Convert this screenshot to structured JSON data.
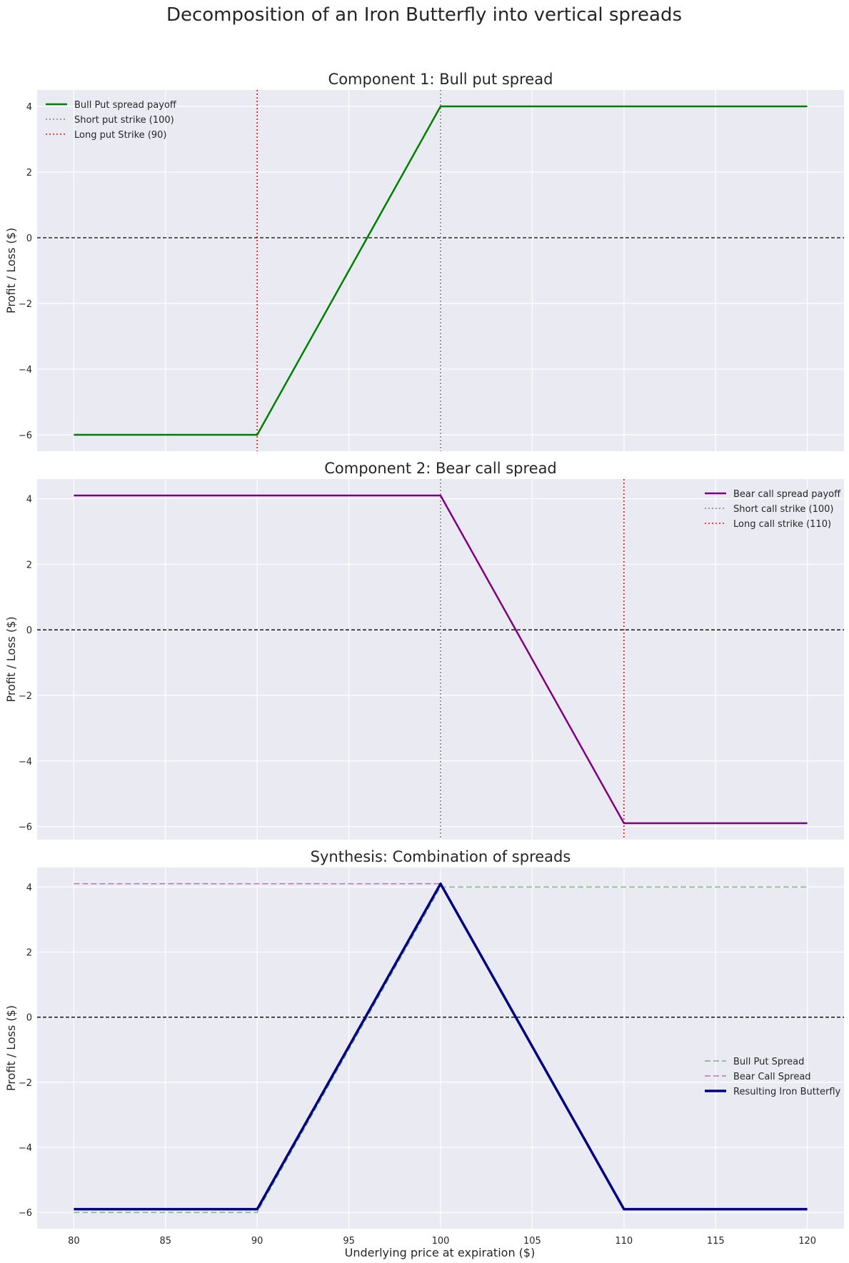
{
  "chart_data": {
    "title": "Decomposition of an Iron Butterfly into vertical spreads",
    "xlabel": "Underlying price at expiration ($)",
    "xlim": [
      78,
      122
    ],
    "xticks": [
      80,
      85,
      90,
      95,
      100,
      105,
      110,
      115,
      120
    ],
    "grid": true,
    "panels": [
      {
        "type": "line",
        "title": "Component 1: Bull put spread",
        "ylabel": "Profit / Loss ($)",
        "ylim": [
          -6.5,
          4.5
        ],
        "yticks": [
          -6,
          -4,
          -2,
          0,
          2,
          4
        ],
        "zero_line": 0,
        "legend_loc": "upper-left",
        "series": [
          {
            "name": "Bull Put spread payoff",
            "x": [
              80,
              90,
              100,
              120
            ],
            "y": [
              -6,
              -6,
              4,
              4
            ],
            "color": "#008000",
            "style": "solid",
            "width": 2.5
          }
        ],
        "vlines": [
          {
            "name": "Short put strike (100)",
            "x": 100,
            "color": "#808080"
          },
          {
            "name": "Long put Strike (90)",
            "x": 90,
            "color": "#ff0000"
          }
        ]
      },
      {
        "type": "line",
        "title": "Component 2: Bear call spread",
        "ylabel": "Profit / Loss ($)",
        "ylim": [
          -6.4,
          4.6
        ],
        "yticks": [
          -6,
          -4,
          -2,
          0,
          2,
          4
        ],
        "zero_line": 0,
        "legend_loc": "upper-right",
        "series": [
          {
            "name": "Bear call spread payoff",
            "x": [
              80,
              100,
              110,
              120
            ],
            "y": [
              4.1,
              4.1,
              -5.9,
              -5.9
            ],
            "color": "#800080",
            "style": "solid",
            "width": 2.5
          }
        ],
        "vlines": [
          {
            "name": "Short call strike (100)",
            "x": 100,
            "color": "#808080"
          },
          {
            "name": "Long call strike (110)",
            "x": 110,
            "color": "#ff0000"
          }
        ]
      },
      {
        "type": "line",
        "title": "Synthesis: Combination of spreads",
        "ylabel": "Profit / Loss ($)",
        "ylim": [
          -6.5,
          4.6
        ],
        "yticks": [
          -6,
          -4,
          -2,
          0,
          2,
          4
        ],
        "zero_line": 0,
        "legend_loc": "center-right",
        "show_x_ticks": true,
        "series": [
          {
            "name": "Bull Put Spread",
            "x": [
              80,
              90,
              100,
              120
            ],
            "y": [
              -6,
              -6,
              4,
              4
            ],
            "color": "#008000",
            "style": "dashed",
            "width": 1.5,
            "opacity": 0.5
          },
          {
            "name": "Bear Call Spread",
            "x": [
              80,
              100,
              110,
              120
            ],
            "y": [
              4.1,
              4.1,
              -5.9,
              -5.9
            ],
            "color": "#800080",
            "style": "dashed",
            "width": 1.5,
            "opacity": 0.5
          },
          {
            "name": "Resulting Iron Butterfly",
            "x": [
              80,
              90,
              100,
              110,
              120
            ],
            "y": [
              -5.9,
              -5.9,
              4.1,
              -5.9,
              -5.9
            ],
            "color": "#000080",
            "style": "solid",
            "width": 3.5
          }
        ],
        "vlines": []
      }
    ]
  }
}
